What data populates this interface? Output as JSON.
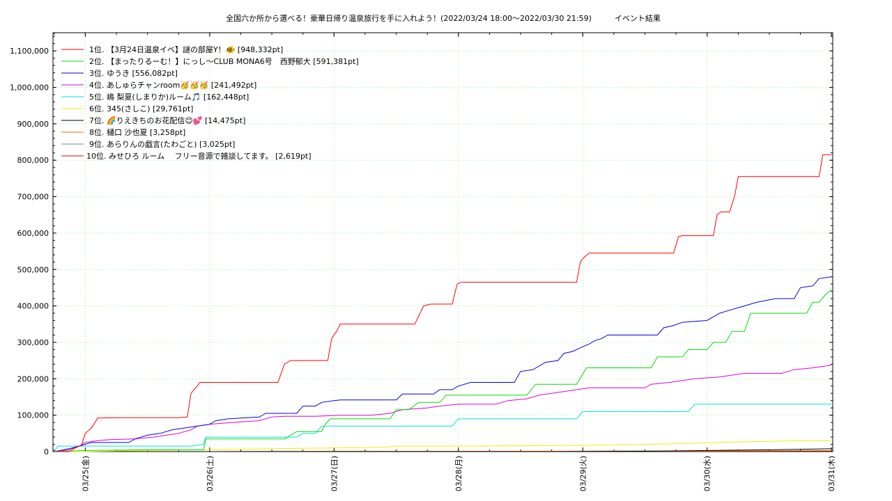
{
  "chart_data": {
    "type": "line",
    "title": "全国六か所から選べる！豪華日帰り温泉旅行を手に入れよう！(2022/03/24 18:00～2022/03/30 21:59)　　　イベント結果",
    "xlabel": "",
    "ylabel": "",
    "x_unit": "days since 2022-03-24 00:00",
    "xlim": [
      0.74,
      7.01
    ],
    "ylim": [
      0,
      1150000
    ],
    "grid": true,
    "legend_position": "top-left",
    "y_ticks": [
      {
        "value": 0,
        "label": "0"
      },
      {
        "value": 100000,
        "label": "100,000"
      },
      {
        "value": 200000,
        "label": "200,000"
      },
      {
        "value": 300000,
        "label": "300,000"
      },
      {
        "value": 400000,
        "label": "400,000"
      },
      {
        "value": 500000,
        "label": "500,000"
      },
      {
        "value": 600000,
        "label": "600,000"
      },
      {
        "value": 700000,
        "label": "700,000"
      },
      {
        "value": 800000,
        "label": "800,000"
      },
      {
        "value": 900000,
        "label": "900,000"
      },
      {
        "value": 1000000,
        "label": "1,000,000"
      },
      {
        "value": 1100000,
        "label": "1,100,000"
      }
    ],
    "x_ticks": [
      {
        "value": 1,
        "label": "03/25(金)"
      },
      {
        "value": 2,
        "label": "03/26(土)"
      },
      {
        "value": 3,
        "label": "03/27(日)"
      },
      {
        "value": 4,
        "label": "03/28(月)"
      },
      {
        "value": 5,
        "label": "03/29(火)"
      },
      {
        "value": 6,
        "label": "03/30(水)"
      },
      {
        "value": 7,
        "label": "03/31(木)"
      }
    ],
    "series": [
      {
        "name": "1位. 【3月24日温泉イベ】謎の部屋Y！🐠 [948,332pt]",
        "color": "#ff0000",
        "points": [
          [
            0.75,
            0
          ],
          [
            0.87,
            0
          ],
          [
            0.92,
            10000
          ],
          [
            0.97,
            18000
          ],
          [
            1.0,
            50000
          ],
          [
            1.05,
            65000
          ],
          [
            1.1,
            92000
          ],
          [
            1.3,
            93000
          ],
          [
            1.55,
            93000
          ],
          [
            1.75,
            93000
          ],
          [
            1.82,
            95000
          ],
          [
            1.85,
            160000
          ],
          [
            1.9,
            180000
          ],
          [
            1.92,
            190000
          ],
          [
            2.2,
            190000
          ],
          [
            2.45,
            190000
          ],
          [
            2.55,
            190000
          ],
          [
            2.6,
            240000
          ],
          [
            2.65,
            250000
          ],
          [
            2.85,
            250000
          ],
          [
            2.95,
            250000
          ],
          [
            2.98,
            310000
          ],
          [
            3.02,
            330000
          ],
          [
            3.05,
            350000
          ],
          [
            3.35,
            350000
          ],
          [
            3.65,
            350000
          ],
          [
            3.72,
            400000
          ],
          [
            3.78,
            405000
          ],
          [
            3.95,
            405000
          ],
          [
            3.99,
            460000
          ],
          [
            4.02,
            465000
          ],
          [
            4.3,
            465000
          ],
          [
            4.6,
            465000
          ],
          [
            4.95,
            465000
          ],
          [
            4.98,
            520000
          ],
          [
            5.0,
            530000
          ],
          [
            5.05,
            545000
          ],
          [
            5.3,
            545000
          ],
          [
            5.6,
            545000
          ],
          [
            5.73,
            545000
          ],
          [
            5.77,
            590000
          ],
          [
            5.8,
            593000
          ],
          [
            6.0,
            593000
          ],
          [
            6.05,
            593000
          ],
          [
            6.08,
            650000
          ],
          [
            6.11,
            658000
          ],
          [
            6.18,
            658000
          ],
          [
            6.22,
            700000
          ],
          [
            6.25,
            755000
          ],
          [
            6.5,
            755000
          ],
          [
            6.75,
            755000
          ],
          [
            6.9,
            755000
          ],
          [
            6.93,
            815000
          ],
          [
            6.97,
            815000
          ],
          [
            7.0,
            815000
          ]
        ]
      },
      {
        "name": "2位. 【まったりるーむ！】にっし〜CLUB MONA6号　西野郁大 [591,381pt]",
        "color": "#00dd00",
        "points": [
          [
            0.75,
            0
          ],
          [
            1.0,
            3000
          ],
          [
            1.5,
            5000
          ],
          [
            1.85,
            5000
          ],
          [
            1.95,
            5000
          ],
          [
            1.97,
            35000
          ],
          [
            2.3,
            35000
          ],
          [
            2.6,
            35000
          ],
          [
            2.7,
            55000
          ],
          [
            2.9,
            55000
          ],
          [
            2.93,
            75000
          ],
          [
            2.97,
            90000
          ],
          [
            3.3,
            90000
          ],
          [
            3.45,
            90000
          ],
          [
            3.5,
            115000
          ],
          [
            3.6,
            115000
          ],
          [
            3.68,
            135000
          ],
          [
            3.85,
            135000
          ],
          [
            3.9,
            155000
          ],
          [
            4.2,
            155000
          ],
          [
            4.55,
            155000
          ],
          [
            4.62,
            185000
          ],
          [
            4.95,
            185000
          ],
          [
            5.03,
            230000
          ],
          [
            5.3,
            230000
          ],
          [
            5.55,
            230000
          ],
          [
            5.6,
            260000
          ],
          [
            5.8,
            260000
          ],
          [
            5.85,
            280000
          ],
          [
            6.0,
            280000
          ],
          [
            6.05,
            300000
          ],
          [
            6.15,
            300000
          ],
          [
            6.2,
            330000
          ],
          [
            6.3,
            330000
          ],
          [
            6.35,
            380000
          ],
          [
            6.6,
            380000
          ],
          [
            6.8,
            380000
          ],
          [
            6.85,
            410000
          ],
          [
            6.9,
            410000
          ],
          [
            6.95,
            430000
          ],
          [
            7.0,
            445000
          ]
        ]
      },
      {
        "name": "3位. ゆうき [556,082pt]",
        "color": "#0000dd",
        "points": [
          [
            0.75,
            0
          ],
          [
            0.8,
            3000
          ],
          [
            0.87,
            8000
          ],
          [
            0.95,
            15000
          ],
          [
            1.0,
            20000
          ],
          [
            1.05,
            25000
          ],
          [
            1.2,
            25000
          ],
          [
            1.35,
            25000
          ],
          [
            1.4,
            35000
          ],
          [
            1.5,
            45000
          ],
          [
            1.6,
            50000
          ],
          [
            1.7,
            60000
          ],
          [
            1.8,
            65000
          ],
          [
            1.9,
            70000
          ],
          [
            2.0,
            75000
          ],
          [
            2.05,
            85000
          ],
          [
            2.15,
            90000
          ],
          [
            2.4,
            95000
          ],
          [
            2.45,
            105000
          ],
          [
            2.7,
            105000
          ],
          [
            2.75,
            125000
          ],
          [
            2.85,
            125000
          ],
          [
            2.9,
            135000
          ],
          [
            3.0,
            140000
          ],
          [
            3.05,
            142000
          ],
          [
            3.5,
            142000
          ],
          [
            3.55,
            158000
          ],
          [
            3.8,
            158000
          ],
          [
            3.85,
            170000
          ],
          [
            3.95,
            170000
          ],
          [
            4.0,
            180000
          ],
          [
            4.1,
            190000
          ],
          [
            4.45,
            190000
          ],
          [
            4.5,
            220000
          ],
          [
            4.6,
            225000
          ],
          [
            4.7,
            245000
          ],
          [
            4.8,
            250000
          ],
          [
            4.85,
            270000
          ],
          [
            4.92,
            275000
          ],
          [
            5.0,
            288000
          ],
          [
            5.05,
            295000
          ],
          [
            5.1,
            305000
          ],
          [
            5.15,
            310000
          ],
          [
            5.2,
            320000
          ],
          [
            5.6,
            320000
          ],
          [
            5.65,
            340000
          ],
          [
            5.72,
            345000
          ],
          [
            5.8,
            355000
          ],
          [
            6.0,
            360000
          ],
          [
            6.1,
            380000
          ],
          [
            6.2,
            390000
          ],
          [
            6.3,
            400000
          ],
          [
            6.4,
            410000
          ],
          [
            6.55,
            420000
          ],
          [
            6.7,
            420000
          ],
          [
            6.75,
            450000
          ],
          [
            6.85,
            455000
          ],
          [
            6.9,
            475000
          ],
          [
            7.0,
            480000
          ]
        ]
      },
      {
        "name": "4位. あしゅらチャンroom🥳🥳🥳 [241,492pt]",
        "color": "#dd00dd",
        "points": [
          [
            0.75,
            0
          ],
          [
            0.87,
            5000
          ],
          [
            0.95,
            15000
          ],
          [
            1.0,
            25000
          ],
          [
            1.1,
            30000
          ],
          [
            1.2,
            33000
          ],
          [
            1.4,
            35000
          ],
          [
            1.55,
            40000
          ],
          [
            1.75,
            50000
          ],
          [
            1.85,
            60000
          ],
          [
            1.9,
            70000
          ],
          [
            2.0,
            75000
          ],
          [
            2.1,
            78000
          ],
          [
            2.4,
            85000
          ],
          [
            2.5,
            95000
          ],
          [
            2.6,
            97000
          ],
          [
            2.85,
            97000
          ],
          [
            3.05,
            100000
          ],
          [
            3.3,
            100000
          ],
          [
            3.45,
            105000
          ],
          [
            3.55,
            115000
          ],
          [
            3.75,
            120000
          ],
          [
            3.85,
            125000
          ],
          [
            4.0,
            130000
          ],
          [
            4.3,
            130000
          ],
          [
            4.4,
            140000
          ],
          [
            4.55,
            145000
          ],
          [
            4.65,
            155000
          ],
          [
            4.75,
            160000
          ],
          [
            4.85,
            165000
          ],
          [
            4.95,
            170000
          ],
          [
            5.05,
            175000
          ],
          [
            5.5,
            175000
          ],
          [
            5.55,
            185000
          ],
          [
            5.7,
            190000
          ],
          [
            5.8,
            195000
          ],
          [
            5.9,
            200000
          ],
          [
            6.1,
            205000
          ],
          [
            6.2,
            210000
          ],
          [
            6.3,
            215000
          ],
          [
            6.6,
            215000
          ],
          [
            6.7,
            225000
          ],
          [
            6.85,
            230000
          ],
          [
            6.95,
            235000
          ],
          [
            7.0,
            237000
          ]
        ]
      },
      {
        "name": "5位. 嶋 梨夏(しまりか)ルーム🎵 [162,448pt]",
        "color": "#00e0e0",
        "points": [
          [
            0.75,
            0
          ],
          [
            0.78,
            15000
          ],
          [
            1.0,
            15000
          ],
          [
            1.3,
            15000
          ],
          [
            1.6,
            15000
          ],
          [
            1.85,
            15000
          ],
          [
            1.95,
            20000
          ],
          [
            1.97,
            40000
          ],
          [
            2.3,
            40000
          ],
          [
            2.7,
            40000
          ],
          [
            2.75,
            50000
          ],
          [
            2.85,
            50000
          ],
          [
            2.9,
            70000
          ],
          [
            3.3,
            70000
          ],
          [
            3.7,
            70000
          ],
          [
            3.95,
            70000
          ],
          [
            4.0,
            90000
          ],
          [
            4.5,
            90000
          ],
          [
            4.95,
            90000
          ],
          [
            5.0,
            110000
          ],
          [
            5.4,
            110000
          ],
          [
            5.85,
            110000
          ],
          [
            5.9,
            130000
          ],
          [
            6.3,
            130000
          ],
          [
            6.7,
            130000
          ],
          [
            7.0,
            130000
          ]
        ]
      },
      {
        "name": "6位. 345(さしこ) [29,761pt]",
        "color": "#f0f000",
        "points": [
          [
            0.75,
            0
          ],
          [
            1.0,
            0
          ],
          [
            1.5,
            3000
          ],
          [
            2.0,
            5000
          ],
          [
            2.5,
            8000
          ],
          [
            3.0,
            10000
          ],
          [
            3.4,
            12000
          ],
          [
            3.5,
            15000
          ],
          [
            4.0,
            15000
          ],
          [
            4.5,
            16000
          ],
          [
            5.0,
            17000
          ],
          [
            5.5,
            20000
          ],
          [
            5.8,
            22000
          ],
          [
            6.05,
            25000
          ],
          [
            6.5,
            28000
          ],
          [
            6.8,
            30000
          ],
          [
            7.0,
            30000
          ]
        ]
      },
      {
        "name": "7位. 🌈りえきちのお花配信😊💕 [14,475pt]",
        "color": "#000000",
        "points": [
          [
            0.75,
            0
          ],
          [
            2.0,
            0
          ],
          [
            3.0,
            0
          ],
          [
            4.0,
            0
          ],
          [
            4.8,
            0
          ],
          [
            5.5,
            1000
          ],
          [
            6.0,
            3000
          ],
          [
            6.5,
            5000
          ],
          [
            6.9,
            7000
          ],
          [
            7.0,
            8000
          ]
        ]
      },
      {
        "name": "8位. 樋口 沙也夏 [3,258pt]",
        "color": "#ff6000",
        "points": [
          [
            0.75,
            0
          ],
          [
            2.0,
            0
          ],
          [
            3.0,
            500
          ],
          [
            4.0,
            800
          ],
          [
            5.0,
            1000
          ],
          [
            6.0,
            1500
          ],
          [
            7.0,
            2500
          ]
        ]
      },
      {
        "name": "9位. あらりんの戯言(たわごと) [3,025pt]",
        "color": "#808080",
        "points": [
          [
            0.75,
            0
          ],
          [
            2.0,
            0
          ],
          [
            3.0,
            500
          ],
          [
            4.0,
            800
          ],
          [
            5.0,
            1200
          ],
          [
            6.0,
            1800
          ],
          [
            7.0,
            2500
          ]
        ]
      },
      {
        "name": "10位. みせひろ ルーム　 フリー音源で雑談してます。 [2,619pt]",
        "color": "#ee0000",
        "points": [
          [
            0.75,
            0
          ],
          [
            2.0,
            0
          ],
          [
            3.0,
            300
          ],
          [
            4.0,
            600
          ],
          [
            5.0,
            900
          ],
          [
            6.0,
            1500
          ],
          [
            7.0,
            2000
          ]
        ]
      }
    ]
  }
}
